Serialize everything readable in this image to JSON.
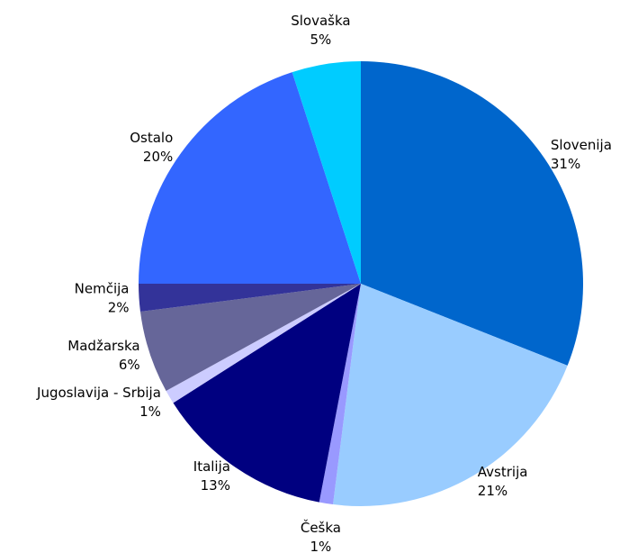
{
  "chart_data": {
    "type": "pie",
    "categories": [
      "Slovenija",
      "Avstrija",
      "Češka",
      "Italija",
      "Jugoslavija - Srbija",
      "Madžarska",
      "Nemčija",
      "Ostalo",
      "Slovaška"
    ],
    "values": [
      31,
      21,
      1,
      13,
      1,
      6,
      2,
      20,
      5
    ],
    "value_labels": [
      "31%",
      "21%",
      "1%",
      "13%",
      "1%",
      "6%",
      "2%",
      "20%",
      "5%"
    ],
    "colors": [
      "#0066cc",
      "#99ccff",
      "#9999ff",
      "#000080",
      "#ccccff",
      "#666699",
      "#333399",
      "#3366ff",
      "#00ccff"
    ]
  }
}
